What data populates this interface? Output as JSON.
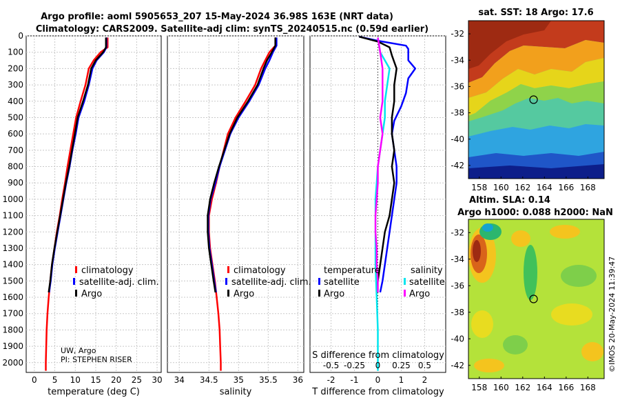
{
  "title_line1": "Argo profile: aoml 5905653_207 15-May-2024 36.98S 163E (NRT data)",
  "title_line2": "Climatology: CARS2009. Satellite-adj clim: synTS_20240515.nc (0.59d earlier)",
  "credit": "UW, Argo",
  "pi": "PI: STEPHEN RISER",
  "imos_stamp": "©IMOS 20-May-2024 11:39:47",
  "colors": {
    "climatology": "#ff0000",
    "satellite": "#0000ff",
    "argo": "#000000",
    "sal_satellite": "#00e5ee",
    "sal_argo": "#ff00ff"
  },
  "chart_data": [
    {
      "type": "line",
      "name": "temperature-panel",
      "xlabel": "temperature (deg C)",
      "ylabel": "",
      "xlim": [
        -2,
        31
      ],
      "ylim": [
        2060,
        0
      ],
      "xticks": [
        0,
        5,
        10,
        15,
        20,
        25,
        30
      ],
      "yticks": [
        0,
        100,
        200,
        300,
        400,
        500,
        600,
        700,
        800,
        900,
        1000,
        1100,
        1200,
        1300,
        1400,
        1500,
        1600,
        1700,
        1800,
        1900,
        2000
      ],
      "legend": [
        "climatology",
        "satellite-adj. clim.",
        "Argo"
      ],
      "series": [
        {
          "name": "climatology",
          "color_key": "climatology",
          "points": [
            [
              17.9,
              10
            ],
            [
              17.9,
              70
            ],
            [
              16.2,
              100
            ],
            [
              14.5,
              150
            ],
            [
              13.3,
              200
            ],
            [
              12.5,
              300
            ],
            [
              11.3,
              400
            ],
            [
              10.2,
              500
            ],
            [
              9.5,
              600
            ],
            [
              8.8,
              700
            ],
            [
              8.1,
              800
            ],
            [
              7.5,
              900
            ],
            [
              6.8,
              1000
            ],
            [
              6.2,
              1100
            ],
            [
              5.5,
              1200
            ],
            [
              4.9,
              1300
            ],
            [
              4.3,
              1400
            ],
            [
              3.9,
              1500
            ],
            [
              3.5,
              1600
            ],
            [
              3.2,
              1700
            ],
            [
              3.0,
              1800
            ],
            [
              2.9,
              1900
            ],
            [
              2.8,
              2000
            ],
            [
              2.8,
              2050
            ]
          ]
        },
        {
          "name": "satellite-adj. clim.",
          "color_key": "satellite",
          "points": [
            [
              17.6,
              10
            ],
            [
              17.6,
              70
            ],
            [
              17.0,
              100
            ],
            [
              15.2,
              150
            ],
            [
              14.2,
              200
            ],
            [
              13.3,
              300
            ],
            [
              12.2,
              400
            ],
            [
              10.8,
              500
            ],
            [
              10.1,
              600
            ],
            [
              9.3,
              700
            ],
            [
              8.6,
              800
            ],
            [
              7.8,
              900
            ],
            [
              7.1,
              1000
            ],
            [
              6.4,
              1100
            ],
            [
              5.7,
              1200
            ],
            [
              5.0,
              1300
            ],
            [
              4.4,
              1400
            ],
            [
              4.0,
              1500
            ],
            [
              3.6,
              1570
            ]
          ]
        },
        {
          "name": "Argo",
          "color_key": "argo",
          "points": [
            [
              17.5,
              10
            ],
            [
              17.5,
              70
            ],
            [
              16.8,
              100
            ],
            [
              15.0,
              150
            ],
            [
              13.9,
              200
            ],
            [
              13.1,
              300
            ],
            [
              11.9,
              400
            ],
            [
              10.6,
              500
            ],
            [
              9.9,
              600
            ],
            [
              9.2,
              700
            ],
            [
              8.5,
              800
            ],
            [
              7.7,
              900
            ],
            [
              7.0,
              1000
            ],
            [
              6.3,
              1100
            ],
            [
              5.6,
              1200
            ],
            [
              4.9,
              1300
            ],
            [
              4.3,
              1400
            ],
            [
              3.9,
              1500
            ],
            [
              3.5,
              1570
            ]
          ]
        }
      ]
    },
    {
      "type": "line",
      "name": "salinity-panel",
      "xlabel": "salinity",
      "xlim": [
        33.8,
        36.1
      ],
      "ylim": [
        2060,
        0
      ],
      "xticks": [
        34,
        34.5,
        35,
        35.5,
        36
      ],
      "xtick_labels": [
        "34",
        "34.5",
        "35",
        "35.5",
        "36"
      ],
      "legend": [
        "climatology",
        "satellite-adj. clim.",
        "Argo"
      ],
      "series": [
        {
          "name": "climatology",
          "color_key": "climatology",
          "points": [
            [
              35.62,
              10
            ],
            [
              35.62,
              60
            ],
            [
              35.52,
              100
            ],
            [
              35.45,
              150
            ],
            [
              35.38,
              200
            ],
            [
              35.28,
              300
            ],
            [
              35.12,
              400
            ],
            [
              34.95,
              500
            ],
            [
              34.82,
              600
            ],
            [
              34.75,
              700
            ],
            [
              34.68,
              800
            ],
            [
              34.62,
              900
            ],
            [
              34.55,
              1000
            ],
            [
              34.5,
              1100
            ],
            [
              34.5,
              1200
            ],
            [
              34.52,
              1300
            ],
            [
              34.56,
              1400
            ],
            [
              34.6,
              1500
            ],
            [
              34.63,
              1600
            ],
            [
              34.66,
              1700
            ],
            [
              34.68,
              1800
            ],
            [
              34.69,
              1900
            ],
            [
              34.7,
              2000
            ],
            [
              34.7,
              2050
            ]
          ]
        },
        {
          "name": "satellite-adj. clim.",
          "color_key": "satellite",
          "points": [
            [
              35.64,
              10
            ],
            [
              35.64,
              60
            ],
            [
              35.58,
              100
            ],
            [
              35.52,
              150
            ],
            [
              35.45,
              200
            ],
            [
              35.34,
              300
            ],
            [
              35.18,
              400
            ],
            [
              35.0,
              500
            ],
            [
              34.86,
              600
            ],
            [
              34.77,
              700
            ],
            [
              34.68,
              800
            ],
            [
              34.61,
              900
            ],
            [
              34.53,
              1000
            ],
            [
              34.49,
              1100
            ],
            [
              34.49,
              1200
            ],
            [
              34.51,
              1300
            ],
            [
              34.55,
              1400
            ],
            [
              34.59,
              1500
            ],
            [
              34.62,
              1570
            ]
          ]
        },
        {
          "name": "Argo",
          "color_key": "argo",
          "points": [
            [
              35.62,
              10
            ],
            [
              35.62,
              60
            ],
            [
              35.56,
              100
            ],
            [
              35.48,
              150
            ],
            [
              35.42,
              200
            ],
            [
              35.32,
              300
            ],
            [
              35.16,
              400
            ],
            [
              34.98,
              500
            ],
            [
              34.85,
              600
            ],
            [
              34.76,
              700
            ],
            [
              34.67,
              800
            ],
            [
              34.59,
              900
            ],
            [
              34.52,
              1000
            ],
            [
              34.48,
              1100
            ],
            [
              34.48,
              1200
            ],
            [
              34.5,
              1300
            ],
            [
              34.54,
              1400
            ],
            [
              34.58,
              1500
            ],
            [
              34.61,
              1570
            ]
          ]
        }
      ]
    },
    {
      "type": "line",
      "name": "difference-panel",
      "xlabel": "T difference from climatology",
      "xlabel2": "S difference from climatology",
      "xlim": [
        -2.9,
        2.9
      ],
      "ylim": [
        2060,
        0
      ],
      "xticks": [
        -2,
        -1,
        0,
        1,
        2
      ],
      "xtick_labels": [
        "-2",
        "-1",
        "0",
        "1",
        "2"
      ],
      "sticks": [
        -2,
        -1,
        0,
        1,
        2
      ],
      "stick_labels": [
        "-0.5",
        "-0.25",
        "0",
        "0.25",
        "0.5"
      ],
      "legend_titles": [
        "temperature",
        "salinity"
      ],
      "legend_left": [
        "satellite",
        "Argo"
      ],
      "legend_right": [
        "satellite",
        "Argo"
      ],
      "series": [
        {
          "name": "T satellite",
          "color_key": "satellite",
          "points": [
            [
              -0.8,
              5
            ],
            [
              0.0,
              30
            ],
            [
              1.2,
              60
            ],
            [
              1.3,
              80
            ],
            [
              1.3,
              150
            ],
            [
              1.6,
              200
            ],
            [
              1.3,
              260
            ],
            [
              1.2,
              350
            ],
            [
              1.0,
              430
            ],
            [
              0.7,
              520
            ],
            [
              0.6,
              600
            ],
            [
              0.7,
              700
            ],
            [
              0.8,
              800
            ],
            [
              0.8,
              900
            ],
            [
              0.7,
              1000
            ],
            [
              0.6,
              1100
            ],
            [
              0.5,
              1200
            ],
            [
              0.4,
              1300
            ],
            [
              0.3,
              1400
            ],
            [
              0.2,
              1500
            ],
            [
              0.1,
              1570
            ]
          ]
        },
        {
          "name": "T Argo",
          "color_key": "argo",
          "points": [
            [
              -0.8,
              5
            ],
            [
              0.0,
              35
            ],
            [
              0.5,
              70
            ],
            [
              0.6,
              120
            ],
            [
              0.8,
              200
            ],
            [
              0.7,
              300
            ],
            [
              0.7,
              400
            ],
            [
              0.6,
              500
            ],
            [
              0.6,
              600
            ],
            [
              0.7,
              700
            ],
            [
              0.6,
              800
            ],
            [
              0.7,
              900
            ],
            [
              0.6,
              1000
            ],
            [
              0.5,
              1100
            ],
            [
              0.3,
              1200
            ],
            [
              0.2,
              1300
            ],
            [
              0.1,
              1400
            ],
            [
              0.0,
              1500
            ],
            [
              -0.05,
              1570
            ]
          ]
        },
        {
          "name": "S satellite",
          "color_key": "sal_satellite",
          "points": [
            [
              0.0,
              10
            ],
            [
              0.1,
              100
            ],
            [
              0.5,
              200
            ],
            [
              0.4,
              300
            ],
            [
              0.3,
              400
            ],
            [
              0.3,
              500
            ],
            [
              0.2,
              600
            ],
            [
              0.1,
              700
            ],
            [
              0.0,
              800
            ],
            [
              -0.05,
              900
            ],
            [
              -0.1,
              1000
            ],
            [
              -0.1,
              1200
            ],
            [
              -0.1,
              1400
            ],
            [
              -0.05,
              1600
            ],
            [
              0.0,
              1800
            ],
            [
              0.0,
              2000
            ],
            [
              0.0,
              2050
            ]
          ]
        },
        {
          "name": "S Argo",
          "color_key": "sal_argo",
          "points": [
            [
              0.0,
              10
            ],
            [
              0.1,
              100
            ],
            [
              0.2,
              200
            ],
            [
              0.2,
              300
            ],
            [
              0.2,
              400
            ],
            [
              0.1,
              500
            ],
            [
              0.2,
              600
            ],
            [
              0.1,
              700
            ],
            [
              0.0,
              800
            ],
            [
              0.0,
              900
            ],
            [
              -0.05,
              1000
            ],
            [
              -0.1,
              1100
            ],
            [
              -0.1,
              1200
            ],
            [
              -0.05,
              1300
            ],
            [
              -0.05,
              1400
            ],
            [
              0.0,
              1500
            ],
            [
              0.0,
              1570
            ]
          ]
        }
      ]
    },
    {
      "type": "heatmap",
      "name": "sst-map",
      "title": "sat. SST: 18 Argo: 17.6",
      "xlim": [
        157,
        169.5
      ],
      "ylim": [
        -43,
        -31
      ],
      "xticks": [
        158,
        160,
        162,
        164,
        166,
        168
      ],
      "yticks": [
        -32,
        -34,
        -36,
        -38,
        -40,
        -42
      ],
      "marker": [
        163,
        -37
      ]
    },
    {
      "type": "heatmap",
      "name": "sla-map",
      "title_line1": "Altim. SLA: 0.14",
      "title_line2": "Argo h1000: 0.088 h2000: NaN",
      "xlim": [
        157,
        169.5
      ],
      "ylim": [
        -43,
        -31
      ],
      "xticks": [
        158,
        160,
        162,
        164,
        166,
        168
      ],
      "yticks": [
        -32,
        -34,
        -36,
        -38,
        -40,
        -42
      ],
      "marker": [
        163,
        -37
      ]
    }
  ]
}
